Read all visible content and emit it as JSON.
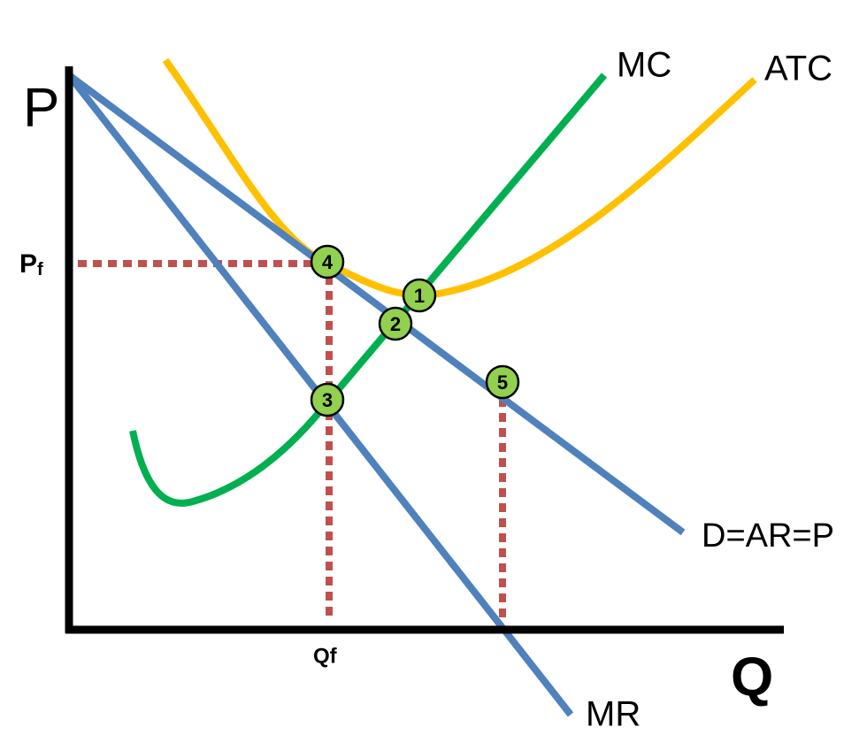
{
  "axes": {
    "y": "P",
    "x": "Q"
  },
  "levels": {
    "price": {
      "main": "P",
      "sub": "f"
    },
    "quantity": "Qf"
  },
  "curves": {
    "mc": "MC",
    "atc": "ATC",
    "demand": "D=AR=P",
    "mr": "MR"
  },
  "points": [
    "1",
    "2",
    "3",
    "4",
    "5"
  ]
}
